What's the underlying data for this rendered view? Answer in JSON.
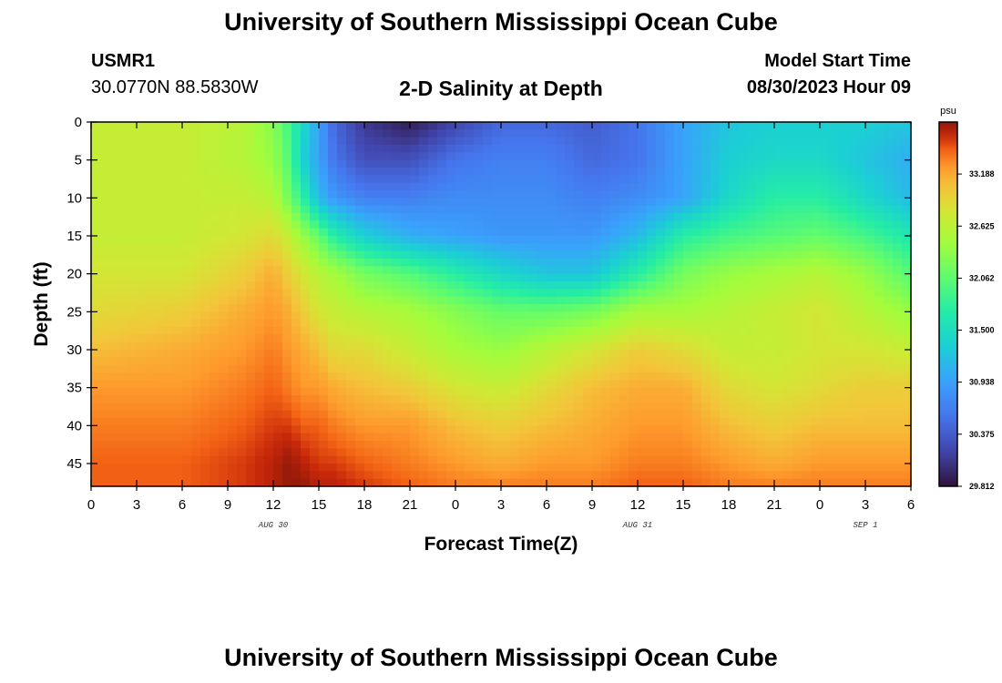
{
  "header": {
    "title": "University of Southern Mississippi Ocean Cube",
    "station": "USMR1",
    "coordinates": "30.0770N  88.5830W",
    "subtitle": "2-D Salinity at Depth",
    "model_start_label": "Model Start Time",
    "model_start_value": "08/30/2023 Hour 09"
  },
  "footer": {
    "title": "University of Southern Mississippi Ocean Cube"
  },
  "chart_data": {
    "type": "heatmap",
    "variable": "salinity",
    "xlabel": "Forecast Time(Z)",
    "ylabel": "Depth (ft)",
    "x_range_hours": [
      0,
      54
    ],
    "y_range_ft": [
      0,
      48
    ],
    "y_inverted": true,
    "x_tick_labels": [
      "0",
      "3",
      "6",
      "9",
      "12",
      "15",
      "18",
      "21",
      "0",
      "3",
      "6",
      "9",
      "12",
      "15",
      "18",
      "21",
      "0",
      "3",
      "6"
    ],
    "y_tick_labels": [
      "0",
      "5",
      "10",
      "15",
      "20",
      "25",
      "30",
      "35",
      "40",
      "45"
    ],
    "y_ticks": [
      0,
      5,
      10,
      15,
      20,
      25,
      30,
      35,
      40,
      45
    ],
    "date_labels": [
      {
        "hour": 12,
        "text": "AUG 30"
      },
      {
        "hour": 36,
        "text": "AUG 31"
      },
      {
        "hour": 51,
        "text": "SEP 1"
      }
    ],
    "colorbar": {
      "unit": "psu",
      "min": 29.812,
      "max": 33.75,
      "ticks": [
        33.188,
        32.625,
        32.062,
        31.5,
        30.938,
        30.375,
        29.812
      ],
      "tick_labels": [
        "33.188",
        "32.625",
        "32.062",
        "31.500",
        "30.938",
        "30.375",
        "29.812"
      ]
    },
    "hours": [
      0,
      6,
      10,
      12,
      13,
      14,
      15,
      16,
      18,
      21,
      24,
      27,
      30,
      33,
      36,
      39,
      42,
      45,
      48,
      51,
      54
    ],
    "depths_ft": [
      0,
      5,
      10,
      15,
      20,
      25,
      30,
      35,
      40,
      45,
      48
    ],
    "salinity": [
      [
        32.8,
        32.8,
        32.8,
        32.8,
        32.9,
        33.0,
        33.2,
        33.4,
        33.5,
        33.6,
        33.6
      ],
      [
        32.8,
        32.8,
        32.8,
        32.8,
        32.9,
        33.1,
        33.3,
        33.4,
        33.5,
        33.6,
        33.6
      ],
      [
        32.7,
        32.7,
        32.8,
        32.9,
        33.1,
        33.3,
        33.4,
        33.5,
        33.6,
        33.7,
        33.7
      ],
      [
        32.4,
        32.5,
        32.7,
        33.0,
        33.3,
        33.4,
        33.5,
        33.6,
        33.7,
        33.8,
        33.8
      ],
      [
        32.0,
        32.1,
        32.3,
        32.8,
        33.1,
        33.3,
        33.4,
        33.5,
        33.7,
        33.9,
        33.9
      ],
      [
        31.5,
        31.4,
        31.8,
        32.5,
        32.9,
        33.1,
        33.3,
        33.4,
        33.6,
        33.8,
        33.9
      ],
      [
        31.0,
        31.0,
        31.2,
        32.2,
        32.7,
        32.9,
        33.2,
        33.4,
        33.6,
        33.7,
        33.8
      ],
      [
        30.5,
        30.6,
        30.9,
        31.8,
        32.6,
        32.8,
        33.0,
        33.3,
        33.5,
        33.7,
        33.8
      ],
      [
        30.1,
        30.3,
        30.7,
        31.4,
        32.3,
        32.7,
        33.0,
        33.2,
        33.4,
        33.6,
        33.7
      ],
      [
        29.9,
        30.3,
        30.7,
        31.1,
        32.1,
        32.6,
        32.8,
        33.1,
        33.4,
        33.5,
        33.6
      ],
      [
        30.2,
        30.6,
        30.8,
        31.0,
        31.8,
        32.4,
        32.6,
        32.9,
        33.2,
        33.4,
        33.5
      ],
      [
        30.5,
        30.7,
        30.8,
        30.9,
        31.5,
        32.2,
        32.5,
        32.8,
        33.1,
        33.3,
        33.5
      ],
      [
        30.5,
        30.7,
        30.8,
        30.9,
        31.3,
        32.2,
        32.7,
        33.0,
        33.2,
        33.4,
        33.5
      ],
      [
        30.4,
        30.5,
        30.7,
        30.9,
        31.3,
        32.3,
        32.9,
        33.2,
        33.3,
        33.4,
        33.5
      ],
      [
        30.6,
        30.6,
        30.8,
        31.2,
        31.8,
        32.6,
        33.1,
        33.3,
        33.4,
        33.5,
        33.6
      ],
      [
        31.0,
        31.0,
        31.0,
        31.8,
        32.3,
        32.6,
        33.0,
        33.3,
        33.4,
        33.5,
        33.6
      ],
      [
        31.3,
        31.4,
        31.5,
        32.0,
        32.5,
        32.7,
        32.8,
        33.0,
        33.2,
        33.4,
        33.5
      ],
      [
        31.4,
        31.5,
        31.8,
        32.1,
        32.6,
        32.8,
        32.8,
        32.9,
        33.1,
        33.3,
        33.5
      ],
      [
        31.4,
        31.5,
        31.8,
        32.2,
        32.7,
        32.9,
        32.9,
        33.0,
        33.2,
        33.4,
        33.5
      ],
      [
        31.4,
        31.3,
        31.5,
        32.0,
        32.5,
        32.7,
        32.9,
        33.1,
        33.2,
        33.4,
        33.5
      ],
      [
        31.3,
        31.1,
        31.2,
        31.7,
        32.1,
        32.5,
        32.8,
        33.1,
        33.2,
        33.4,
        33.5
      ]
    ]
  }
}
